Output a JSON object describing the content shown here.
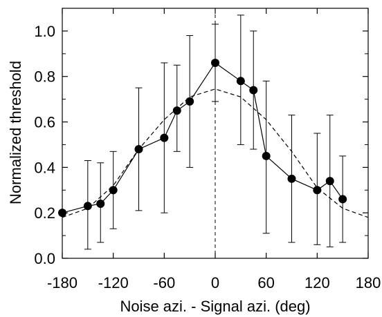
{
  "chart_data": {
    "type": "line",
    "title": "",
    "xlabel": "Noise azi. - Signal azi. (deg)",
    "ylabel": "Normalized threshold",
    "xlim": [
      -180,
      180
    ],
    "ylim": [
      0.0,
      1.1
    ],
    "xticks": [
      -180,
      -120,
      -60,
      0,
      60,
      120,
      180
    ],
    "xtick_labels": [
      "-180",
      "-120",
      "-60",
      "0",
      "60",
      "120",
      "180"
    ],
    "yticks": [
      0.0,
      0.2,
      0.4,
      0.6,
      0.8,
      1.0
    ],
    "ytick_labels": [
      "0.0",
      "0.2",
      "0.4",
      "0.6",
      "0.8",
      "1.0"
    ],
    "grid": false,
    "reference_line_x": 0,
    "series": [
      {
        "style": "solid-markers-errorbars",
        "x": [
          -180,
          -150,
          -135,
          -120,
          -90,
          -60,
          -45,
          -30,
          0,
          30,
          45,
          60,
          90,
          120,
          135,
          150
        ],
        "y": [
          0.2,
          0.23,
          0.24,
          0.3,
          0.48,
          0.53,
          0.65,
          0.69,
          0.86,
          0.78,
          0.74,
          0.45,
          0.35,
          0.3,
          0.34,
          0.26
        ],
        "err_low": [
          0.19,
          0.04,
          0.07,
          0.13,
          0.21,
          0.2,
          0.47,
          0.4,
          0.69,
          0.5,
          0.48,
          0.11,
          0.07,
          0.06,
          0.05,
          0.07
        ],
        "err_high": [
          0.21,
          0.43,
          0.42,
          0.47,
          0.75,
          0.86,
          0.85,
          0.98,
          1.03,
          1.07,
          1.0,
          0.78,
          0.63,
          0.55,
          0.63,
          0.45
        ]
      },
      {
        "style": "dashed",
        "x": [
          -180,
          -150,
          -120,
          -90,
          -60,
          -30,
          0,
          30,
          60,
          90,
          120,
          150,
          180
        ],
        "y": [
          0.18,
          0.22,
          0.32,
          0.48,
          0.61,
          0.71,
          0.745,
          0.71,
          0.61,
          0.47,
          0.31,
          0.22,
          0.18
        ]
      }
    ]
  }
}
